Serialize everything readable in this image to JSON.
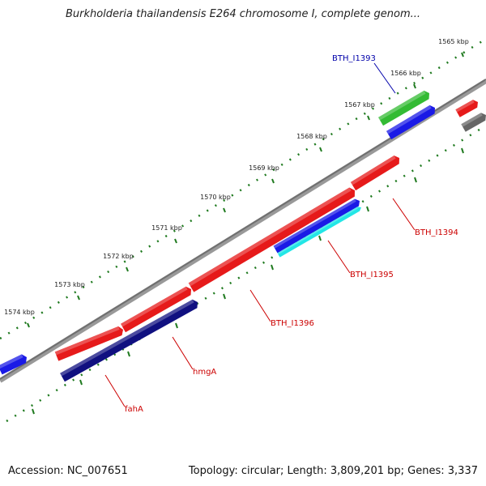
{
  "title": "Burkholderia thailandensis E264 chromosome I, complete genom...",
  "ticks": [
    {
      "label": "1565 kbp"
    },
    {
      "label": "1566 kbp"
    },
    {
      "label": "1567 kbp"
    },
    {
      "label": "1568 kbp"
    },
    {
      "label": "1569 kbp"
    },
    {
      "label": "1570 kbp"
    },
    {
      "label": "1571 kbp"
    },
    {
      "label": "1572 kbp"
    },
    {
      "label": "1573 kbp"
    },
    {
      "label": "1574 kbp"
    }
  ],
  "genes": [
    {
      "label": "BTH_I1393",
      "color": "#0000aa"
    },
    {
      "label": "BTH_I1394",
      "color": "#cc0000"
    },
    {
      "label": "BTH_I1395",
      "color": "#cc0000"
    },
    {
      "label": "BTH_I1396",
      "color": "#cc0000"
    },
    {
      "label": "hmgA",
      "color": "#cc0000"
    },
    {
      "label": "fahA",
      "color": "#cc0000"
    }
  ],
  "colors": {
    "backbone": "#7f7f7f",
    "tick_marks": "#1f7a1f",
    "feature_green": "#33bb33",
    "feature_blue": "#1a1ae6",
    "feature_red": "#e61a1a",
    "feature_navy": "#101080",
    "feature_cyan": "#22e6e6",
    "feature_gray": "#666666"
  },
  "footer": {
    "accession": "Accession: NC_007651",
    "stats": "Topology: circular; Length: 3,809,201 bp; Genes: 3,337"
  }
}
